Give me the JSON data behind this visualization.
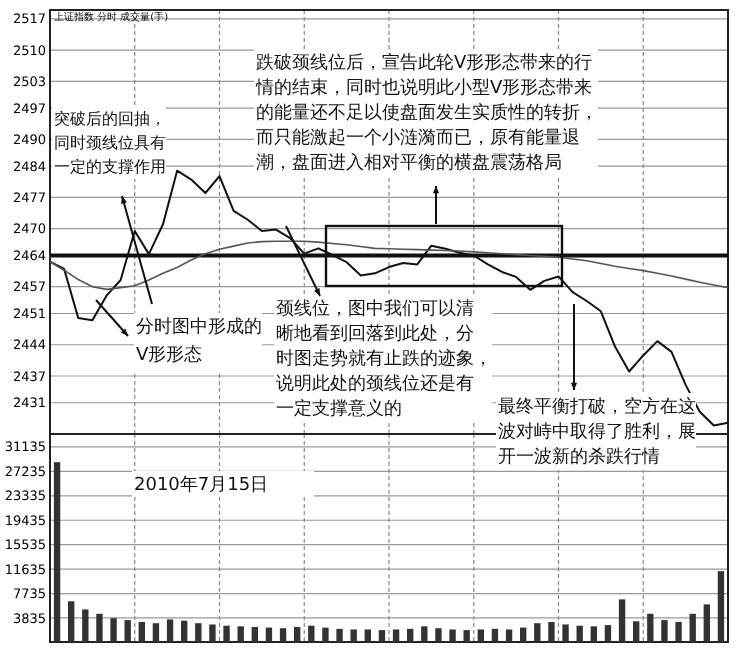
{
  "chart_data": [
    {
      "type": "line",
      "title": "上证指数 分时 成交量(手)",
      "categories": [
        null,
        null,
        null,
        null,
        null,
        null,
        null,
        null,
        null,
        null,
        null,
        null,
        null,
        null,
        null,
        null,
        null,
        null,
        null,
        null,
        null,
        null,
        null,
        null,
        null,
        null,
        null,
        null,
        null,
        null,
        null,
        null,
        null,
        null,
        null,
        null,
        null,
        null,
        null,
        null,
        null,
        null,
        null,
        null,
        null,
        null,
        null,
        null,
        null
      ],
      "ylim": [
        2424,
        2519
      ],
      "yticks": [
        2431,
        2437,
        2444,
        2451,
        2457,
        2464,
        2470,
        2477,
        2484,
        2490,
        2497,
        2503,
        2510,
        2517
      ],
      "tick_labels": "y",
      "grid": true,
      "series": [
        {
          "color": "#111111",
          "values": [
            2462.6,
            2461,
            2450,
            2449.5,
            2455,
            2458.5,
            2469.5,
            2464.3,
            2471,
            2483,
            2481,
            2478,
            2481.8,
            2474,
            2472,
            2469.5,
            2469.8,
            2467.9,
            2464.4,
            2465.6,
            2464.1,
            2462.5,
            2459.5,
            2460,
            2461.4,
            2462.3,
            2462,
            2466.2,
            2465.5,
            2464.6,
            2464,
            2462,
            2460.3,
            2459.2,
            2456.3,
            2458.3,
            2459.3,
            2455.8,
            2453.8,
            2451.5,
            2443.6,
            2438,
            2441.6,
            2444.8,
            2442.4,
            2435,
            2429,
            2425.9,
            2426.5
          ]
        },
        {
          "color": "#555555",
          "values": [
            2462.6,
            2460.7,
            2458.6,
            2457,
            2456.4,
            2456.8,
            2457.2,
            2458.5,
            2460,
            2461.3,
            2463,
            2464.4,
            2465.4,
            2466.1,
            2466.8,
            2467.1,
            2467.2,
            2467.2,
            2467.2,
            2467,
            2466.7,
            2466.4,
            2466,
            2465.6,
            2465.5,
            2465.4,
            2465.3,
            2465.2,
            2465.1,
            2465,
            2464.8,
            2464.6,
            2464.4,
            2464.2,
            2464,
            2463.8,
            2463.6,
            2463.2,
            2462.8,
            2462.2,
            2461.6,
            2461.1,
            2460.6,
            2460,
            2459.4,
            2458.7,
            2458,
            2457.4,
            2456.8
          ]
        }
      ],
      "ref_lines": [
        {
          "axis": "y",
          "value": 2464
        }
      ],
      "annotations": [
        "突破后的回抽，同时颈线位具有一定的支撑作用",
        "跌破颈线位后，宣告此轮V形形态带来的行情的结束，同时也说明此小型V形形态带来的能量还不足以使盘面发生实质性的转折，而只能激起一个小涟漪而已，原有能量退潮，盘面进入相对平衡的横盘震荡格局",
        "分时图中形成的V形形态",
        "颈线位，图中我们可以清晰地看到回落到此处，分时图走势就有止跌的迹象，说明此处的颈线位还是有一定支撑意义的",
        "最终平衡打破，空方在这波对峙中取得了胜利，展开一波新的杀跌行情",
        "2010年7月15日"
      ]
    },
    {
      "type": "bar",
      "categories": [
        null,
        null,
        null,
        null,
        null,
        null,
        null,
        null,
        null,
        null,
        null,
        null,
        null,
        null,
        null,
        null,
        null,
        null,
        null,
        null,
        null,
        null,
        null,
        null,
        null,
        null,
        null,
        null,
        null,
        null,
        null,
        null,
        null,
        null,
        null,
        null,
        null,
        null,
        null,
        null,
        null,
        null,
        null,
        null,
        null,
        null,
        null,
        null
      ],
      "ylim": [
        0,
        33200
      ],
      "yticks": [
        3835,
        7735,
        11635,
        15535,
        19435,
        23335,
        27235,
        31135
      ],
      "tick_labels": "y",
      "grid": true,
      "color": "#333333",
      "values": [
        28700,
        6500,
        5200,
        4500,
        3800,
        3500,
        3200,
        3000,
        3600,
        3400,
        3000,
        2800,
        2600,
        2500,
        2400,
        2300,
        2200,
        2400,
        2600,
        2300,
        2100,
        2000,
        2000,
        1900,
        2000,
        2100,
        2500,
        2200,
        2000,
        1900,
        2000,
        2100,
        2000,
        2300,
        3000,
        3200,
        2800,
        2600,
        2500,
        2700,
        6800,
        3300,
        4500,
        3500,
        3200,
        4500,
        6000,
        11300
      ]
    }
  ]
}
